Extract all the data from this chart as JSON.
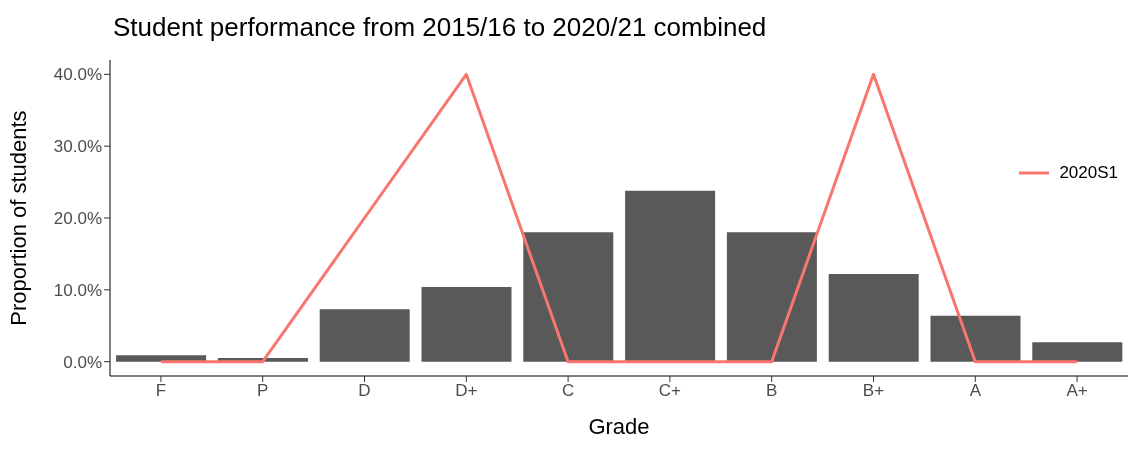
{
  "chart_data": {
    "type": "bar",
    "title": "Student performance from 2015/16 to 2020/21 combined",
    "xlabel": "Grade",
    "ylabel": "Proportion of students",
    "categories": [
      "F",
      "P",
      "D",
      "D+",
      "C",
      "C+",
      "B",
      "B+",
      "A",
      "A+"
    ],
    "series": [
      {
        "color": "#595959",
        "values": [
          0.9,
          0.5,
          7.3,
          10.4,
          18.0,
          23.8,
          18.0,
          12.2,
          6.4,
          2.7
        ]
      },
      {
        "type": "line",
        "name": "2020S1",
        "color": "#f8766d",
        "values": [
          0,
          0,
          20,
          40,
          0,
          0,
          0,
          40,
          0,
          0
        ]
      }
    ],
    "ylim": [
      -2,
      42
    ],
    "yticks": [
      {
        "value": 0,
        "label": "0.0%"
      },
      {
        "value": 10,
        "label": "10.0%"
      },
      {
        "value": 20,
        "label": "20.0%"
      },
      {
        "value": 30,
        "label": "30.0%"
      },
      {
        "value": 40,
        "label": "40.0%"
      }
    ],
    "grid": false,
    "legend": "right",
    "marker": "none",
    "line_style": "solid"
  }
}
